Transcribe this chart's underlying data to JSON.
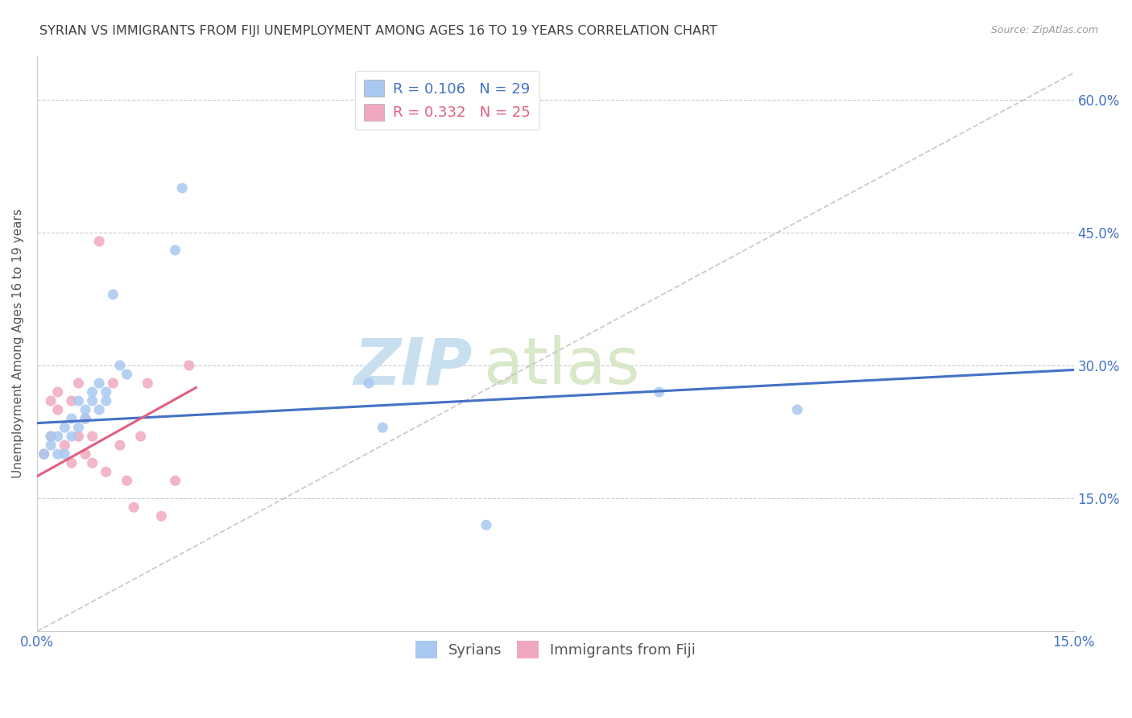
{
  "title": "SYRIAN VS IMMIGRANTS FROM FIJI UNEMPLOYMENT AMONG AGES 16 TO 19 YEARS CORRELATION CHART",
  "source": "Source: ZipAtlas.com",
  "ylabel": "Unemployment Among Ages 16 to 19 years",
  "xlim": [
    0.0,
    0.15
  ],
  "ylim": [
    0.0,
    0.65
  ],
  "xtick_positions": [
    0.0,
    0.05,
    0.1,
    0.15
  ],
  "xtick_labels": [
    "0.0%",
    "",
    "",
    "15.0%"
  ],
  "ytick_positions": [
    0.0,
    0.15,
    0.3,
    0.45,
    0.6
  ],
  "ytick_labels": [
    "",
    "15.0%",
    "30.0%",
    "45.0%",
    "60.0%"
  ],
  "syrians_x": [
    0.001,
    0.002,
    0.002,
    0.003,
    0.003,
    0.004,
    0.004,
    0.005,
    0.005,
    0.006,
    0.006,
    0.007,
    0.007,
    0.008,
    0.008,
    0.009,
    0.009,
    0.01,
    0.01,
    0.011,
    0.012,
    0.013,
    0.02,
    0.021,
    0.048,
    0.05,
    0.065,
    0.09,
    0.11
  ],
  "syrians_y": [
    0.2,
    0.22,
    0.21,
    0.2,
    0.22,
    0.23,
    0.2,
    0.22,
    0.24,
    0.23,
    0.26,
    0.25,
    0.24,
    0.27,
    0.26,
    0.25,
    0.28,
    0.27,
    0.26,
    0.38,
    0.3,
    0.29,
    0.43,
    0.5,
    0.28,
    0.23,
    0.12,
    0.27,
    0.25
  ],
  "fiji_x": [
    0.001,
    0.002,
    0.002,
    0.003,
    0.003,
    0.004,
    0.005,
    0.005,
    0.006,
    0.006,
    0.007,
    0.007,
    0.008,
    0.008,
    0.009,
    0.01,
    0.011,
    0.012,
    0.013,
    0.014,
    0.015,
    0.016,
    0.018,
    0.02,
    0.022
  ],
  "fiji_y": [
    0.2,
    0.26,
    0.22,
    0.27,
    0.25,
    0.21,
    0.26,
    0.19,
    0.28,
    0.22,
    0.24,
    0.2,
    0.19,
    0.22,
    0.44,
    0.18,
    0.28,
    0.21,
    0.17,
    0.14,
    0.22,
    0.28,
    0.13,
    0.17,
    0.3
  ],
  "blue_line_x": [
    0.0,
    0.15
  ],
  "blue_line_y": [
    0.235,
    0.295
  ],
  "pink_line_x": [
    0.0,
    0.023
  ],
  "pink_line_y": [
    0.175,
    0.275
  ],
  "diag_line_x": [
    0.0,
    0.15
  ],
  "diag_line_y": [
    0.0,
    0.63
  ],
  "blue_line_color": "#4472c4",
  "pink_line_color": "#e06080",
  "diag_line_color": "#c8c0c0",
  "scatter_blue": "#a8c8f0",
  "scatter_pink": "#f0a8c0",
  "background_color": "#ffffff",
  "grid_color": "#cccccc",
  "title_color": "#404040",
  "axis_label_color": "#555555",
  "tick_label_color": "#4472c4",
  "title_fontsize": 11.5,
  "source_fontsize": 9,
  "axis_label_fontsize": 11,
  "tick_fontsize": 12,
  "legend_fontsize": 13,
  "scatter_size": 90,
  "watermark_zip_color": "#c8dff0",
  "watermark_atlas_color": "#d8e8c8",
  "watermark_fontsize": 58,
  "legend1_r1_label": "R = 0.106",
  "legend1_n1_label": "N = 29",
  "legend1_r2_label": "R = 0.332",
  "legend1_n2_label": "N = 25",
  "legend2_label1": "Syrians",
  "legend2_label2": "Immigrants from Fiji"
}
